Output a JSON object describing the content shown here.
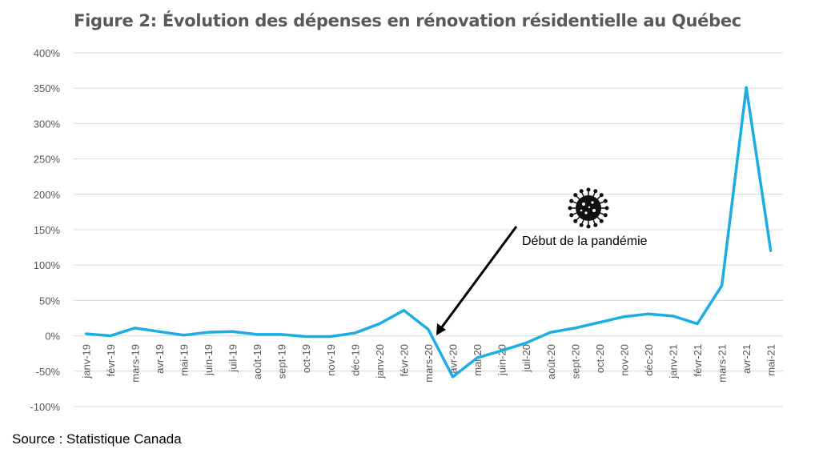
{
  "chart_data": {
    "type": "line",
    "title": "Figure 2: Évolution des dépenses en rénovation résidentielle au Québec",
    "xlabel": "",
    "ylabel": "",
    "ylim": [
      -100,
      400
    ],
    "yticks": [
      -100,
      -50,
      0,
      50,
      100,
      150,
      200,
      250,
      300,
      350,
      400
    ],
    "ytick_labels": [
      "-100%",
      "-50%",
      "0%",
      "50%",
      "100%",
      "150%",
      "200%",
      "250%",
      "300%",
      "350%",
      "400%"
    ],
    "grid": true,
    "categories": [
      "janv-19",
      "févr-19",
      "mars-19",
      "avr-19",
      "mai-19",
      "juin-19",
      "juil-19",
      "août-19",
      "sept-19",
      "oct-19",
      "nov-19",
      "déc-19",
      "janv-20",
      "févr-20",
      "mars-20",
      "avr-20",
      "mai-20",
      "juin-20",
      "juil-20",
      "août-20",
      "sept-20",
      "oct-20",
      "nov-20",
      "déc-20",
      "janv-21",
      "févr-21",
      "mars-21",
      "avr-21",
      "mai-21"
    ],
    "series": [
      {
        "name": "Dépenses en rénovation résidentielle",
        "color": "#1CADE4",
        "values": [
          3,
          0,
          11,
          6,
          1,
          5,
          6,
          2,
          2,
          -1,
          -1,
          4,
          17,
          36,
          9,
          -58,
          -31,
          -21,
          -10,
          5,
          11,
          19,
          27,
          31,
          28,
          17,
          71,
          351,
          120
        ]
      }
    ],
    "annotations": [
      {
        "text": "Début de la pandémie",
        "points_to": "mars-20",
        "icon": "virus-icon"
      }
    ]
  },
  "footer": {
    "source": "Source : Statistique Canada"
  }
}
